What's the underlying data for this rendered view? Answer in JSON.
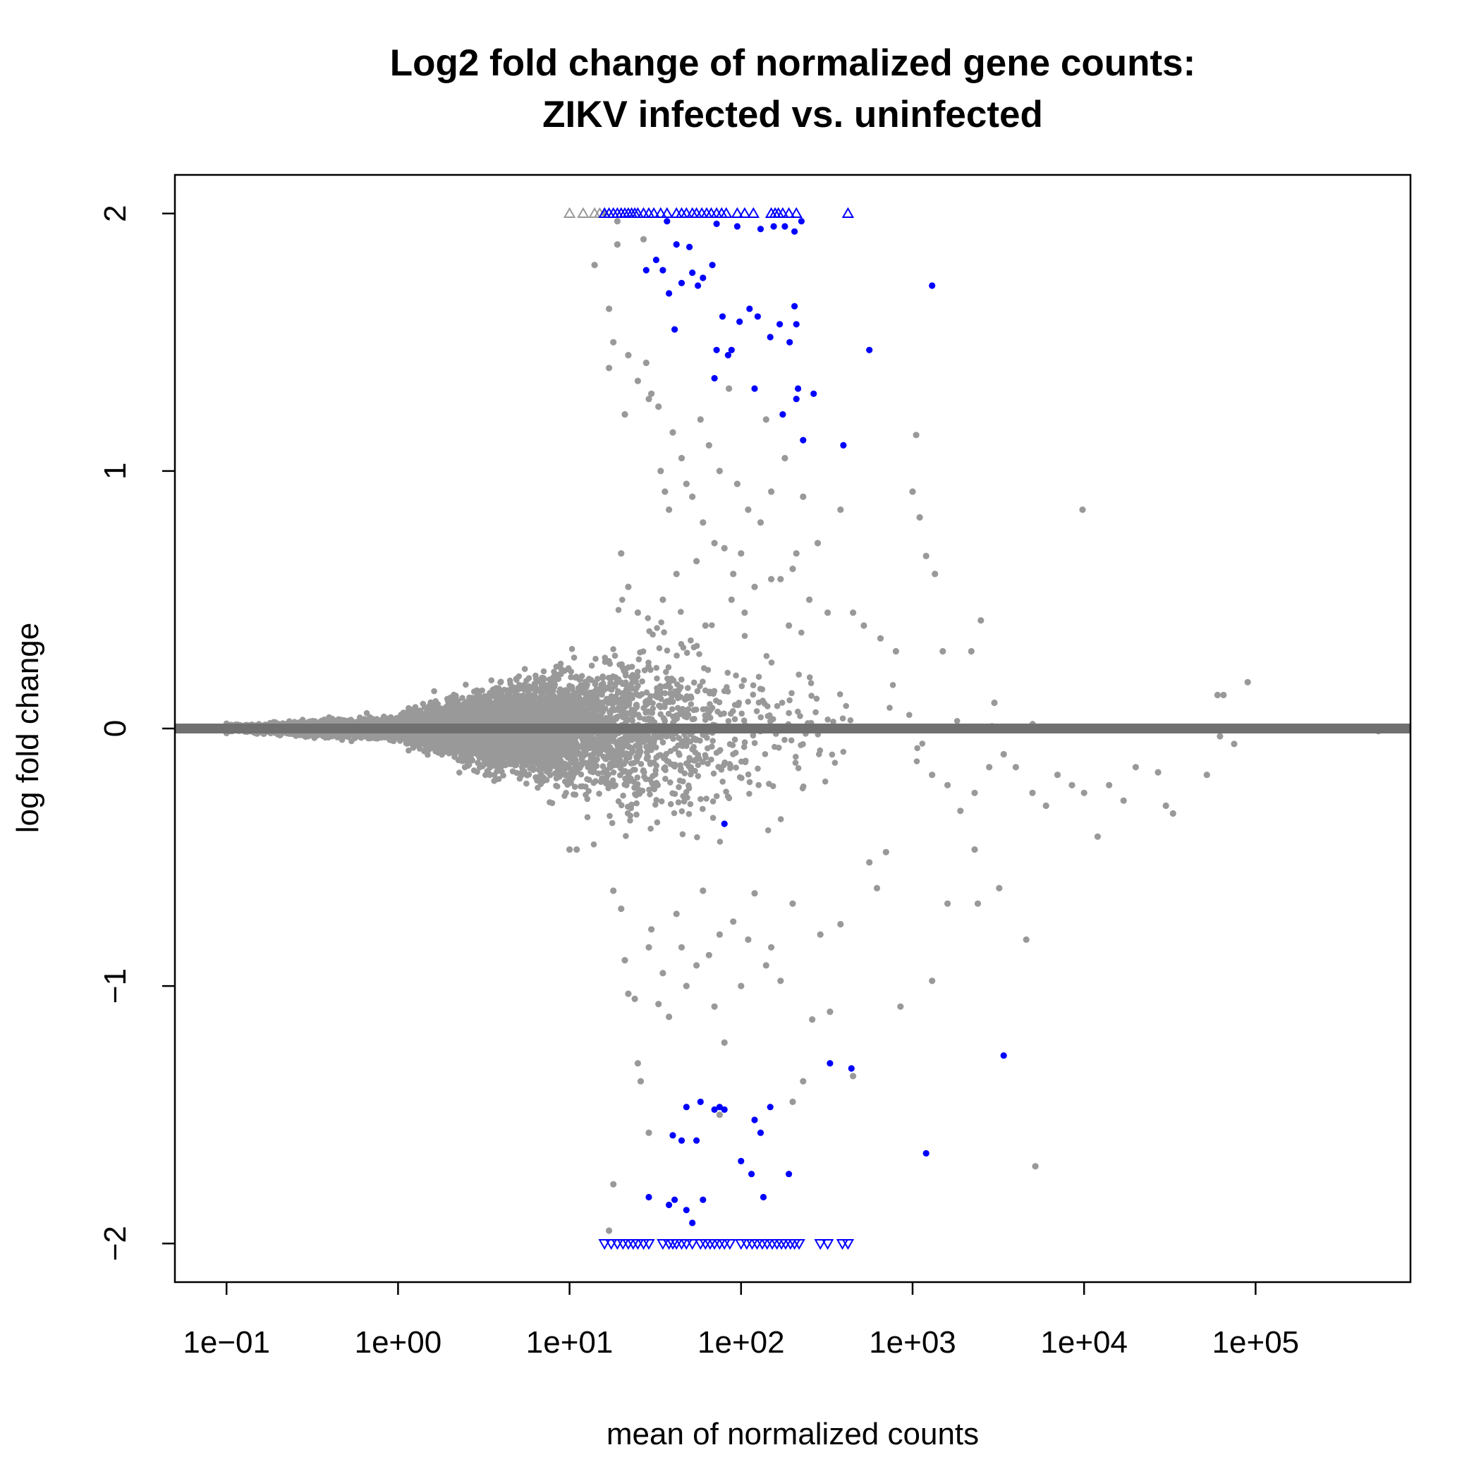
{
  "chart_data": {
    "type": "scatter",
    "title": [
      "Log2 fold change of normalized gene counts:",
      "ZIKV infected vs. uninfected"
    ],
    "xlabel": "mean of normalized counts",
    "ylabel": "log fold change",
    "x_scale": "log10",
    "xlim": [
      0.05,
      800000
    ],
    "ylim": [
      -2.15,
      2.15
    ],
    "x_ticks": [
      {
        "value": 0.1,
        "label": "1e−01"
      },
      {
        "value": 1,
        "label": "1e+00"
      },
      {
        "value": 10,
        "label": "1e+01"
      },
      {
        "value": 100,
        "label": "1e+02"
      },
      {
        "value": 1000,
        "label": "1e+03"
      },
      {
        "value": 10000,
        "label": "1e+04"
      },
      {
        "value": 100000,
        "label": "1e+05"
      }
    ],
    "y_ticks": [
      {
        "value": 2,
        "label": "2"
      },
      {
        "value": 1,
        "label": "1"
      },
      {
        "value": 0,
        "label": "0"
      },
      {
        "value": -1,
        "label": "−1"
      },
      {
        "value": -2,
        "label": "−2"
      }
    ],
    "reference_line": {
      "y": 0,
      "color": "#707070"
    },
    "colors": {
      "not_significant": "#999999",
      "significant": "#0000ff",
      "frame": "#000000"
    },
    "series": [
      {
        "points": [
          [
            14,
            1.8
          ],
          [
            17,
            1.63
          ],
          [
            17,
            1.4
          ],
          [
            19,
            1.88
          ],
          [
            21,
            1.22
          ],
          [
            25,
            1.35
          ],
          [
            28,
            1.42
          ],
          [
            30,
            1.3
          ],
          [
            33,
            1.25
          ],
          [
            34,
            1.0
          ],
          [
            36,
            0.92
          ],
          [
            38,
            0.85
          ],
          [
            40,
            1.15
          ],
          [
            45,
            1.05
          ],
          [
            48,
            0.95
          ],
          [
            52,
            0.9
          ],
          [
            58,
            1.2
          ],
          [
            60,
            0.8
          ],
          [
            65,
            1.1
          ],
          [
            70,
            0.72
          ],
          [
            75,
            1.0
          ],
          [
            80,
            0.7
          ],
          [
            85,
            1.32
          ],
          [
            90,
            0.6
          ],
          [
            95,
            0.95
          ],
          [
            100,
            0.68
          ],
          [
            110,
            0.85
          ],
          [
            120,
            0.55
          ],
          [
            130,
            0.8
          ],
          [
            140,
            1.2
          ],
          [
            150,
            0.92
          ],
          [
            170,
            0.58
          ],
          [
            180,
            1.05
          ],
          [
            200,
            0.62
          ],
          [
            230,
            0.9
          ],
          [
            250,
            0.5
          ],
          [
            280,
            0.72
          ],
          [
            320,
            0.45
          ],
          [
            380,
            0.85
          ],
          [
            450,
            0.45
          ],
          [
            520,
            0.4
          ],
          [
            650,
            0.35
          ],
          [
            800,
            0.3
          ],
          [
            1000,
            0.92
          ],
          [
            1050,
            1.14
          ],
          [
            1100,
            0.82
          ],
          [
            1200,
            0.67
          ],
          [
            1350,
            0.6
          ],
          [
            1500,
            0.3
          ],
          [
            2200,
            0.3
          ],
          [
            2500,
            0.42
          ],
          [
            3000,
            0.1
          ],
          [
            9800,
            0.85
          ],
          [
            60000,
            0.13
          ],
          [
            65000,
            0.13
          ],
          [
            90000,
            0.18
          ],
          [
            20,
            0.68
          ],
          [
            22,
            0.55
          ],
          [
            25,
            0.45
          ],
          [
            35,
            0.5
          ],
          [
            42,
            0.6
          ],
          [
            55,
            0.65
          ],
          [
            62,
            0.4
          ],
          [
            88,
            0.5
          ],
          [
            105,
            0.45
          ],
          [
            150,
            0.58
          ],
          [
            190,
            0.4
          ],
          [
            210,
            0.68
          ],
          [
            18,
            1.5
          ],
          [
            22,
            1.45
          ],
          [
            29,
            1.28
          ],
          [
            16,
            2.0
          ],
          [
            19,
            1.97
          ],
          [
            27,
            1.9
          ],
          [
            10,
            -0.47
          ],
          [
            11,
            -0.47
          ],
          [
            18,
            -0.63
          ],
          [
            20,
            -0.7
          ],
          [
            21,
            -0.9
          ],
          [
            22,
            -1.03
          ],
          [
            24,
            -1.05
          ],
          [
            25,
            -1.3
          ],
          [
            26,
            -1.37
          ],
          [
            29,
            -0.85
          ],
          [
            30,
            -0.78
          ],
          [
            33,
            -1.07
          ],
          [
            35,
            -0.95
          ],
          [
            38,
            -1.12
          ],
          [
            42,
            -0.72
          ],
          [
            45,
            -0.85
          ],
          [
            48,
            -1.0
          ],
          [
            55,
            -0.92
          ],
          [
            60,
            -0.63
          ],
          [
            65,
            -0.88
          ],
          [
            70,
            -1.08
          ],
          [
            75,
            -0.8
          ],
          [
            80,
            -1.22
          ],
          [
            90,
            -0.75
          ],
          [
            100,
            -1.0
          ],
          [
            110,
            -0.82
          ],
          [
            120,
            -0.64
          ],
          [
            140,
            -0.92
          ],
          [
            150,
            -0.85
          ],
          [
            170,
            -0.98
          ],
          [
            200,
            -0.68
          ],
          [
            230,
            -1.37
          ],
          [
            260,
            -1.13
          ],
          [
            290,
            -0.8
          ],
          [
            330,
            -1.1
          ],
          [
            380,
            -0.76
          ],
          [
            450,
            -1.35
          ],
          [
            560,
            -0.52
          ],
          [
            620,
            -0.62
          ],
          [
            700,
            -0.48
          ],
          [
            850,
            -1.08
          ],
          [
            1300,
            -0.98
          ],
          [
            1600,
            -0.68
          ],
          [
            2300,
            -0.47
          ],
          [
            2400,
            -0.68
          ],
          [
            3200,
            -0.62
          ],
          [
            4600,
            -0.82
          ],
          [
            5200,
            -1.7
          ],
          [
            4000,
            -0.15
          ],
          [
            5000,
            -0.25
          ],
          [
            6000,
            -0.3
          ],
          [
            7000,
            -0.18
          ],
          [
            8500,
            -0.22
          ],
          [
            10000,
            -0.25
          ],
          [
            12000,
            -0.42
          ],
          [
            14000,
            -0.22
          ],
          [
            17000,
            -0.28
          ],
          [
            20000,
            -0.15
          ],
          [
            27000,
            -0.17
          ],
          [
            30000,
            -0.3
          ],
          [
            33000,
            -0.33
          ],
          [
            52000,
            -0.18
          ],
          [
            62000,
            -0.03
          ],
          [
            75000,
            -0.06
          ],
          [
            520000,
            -0.01
          ],
          [
            1300,
            -0.18
          ],
          [
            1600,
            -0.22
          ],
          [
            1900,
            -0.32
          ],
          [
            2300,
            -0.25
          ],
          [
            2800,
            -0.15
          ],
          [
            3400,
            -0.1
          ],
          [
            17,
            -1.95
          ],
          [
            18,
            -1.77
          ],
          [
            200,
            -1.45
          ],
          [
            29,
            -1.57
          ],
          [
            75,
            -1.5
          ]
        ]
      },
      {
        "points": [
          [
            37,
            1.97
          ],
          [
            72,
            1.96
          ],
          [
            95,
            1.95
          ],
          [
            130,
            1.94
          ],
          [
            155,
            1.95
          ],
          [
            180,
            1.95
          ],
          [
            205,
            1.93
          ],
          [
            225,
            1.97
          ],
          [
            42,
            1.88
          ],
          [
            28,
            1.78
          ],
          [
            32,
            1.82
          ],
          [
            35,
            1.78
          ],
          [
            38,
            1.69
          ],
          [
            45,
            1.73
          ],
          [
            50,
            1.87
          ],
          [
            52,
            1.77
          ],
          [
            56,
            1.72
          ],
          [
            60,
            1.75
          ],
          [
            68,
            1.8
          ],
          [
            1300,
            1.72
          ],
          [
            41,
            1.55
          ],
          [
            72,
            1.47
          ],
          [
            78,
            1.6
          ],
          [
            84,
            1.45
          ],
          [
            98,
            1.58
          ],
          [
            112,
            1.63
          ],
          [
            125,
            1.6
          ],
          [
            148,
            1.52
          ],
          [
            168,
            1.57
          ],
          [
            192,
            1.5
          ],
          [
            205,
            1.64
          ],
          [
            210,
            1.57
          ],
          [
            88,
            1.47
          ],
          [
            70,
            1.36
          ],
          [
            120,
            1.32
          ],
          [
            175,
            1.22
          ],
          [
            210,
            1.28
          ],
          [
            215,
            1.32
          ],
          [
            230,
            1.12
          ],
          [
            265,
            1.3
          ],
          [
            395,
            1.1
          ],
          [
            560,
            1.47
          ],
          [
            80,
            -0.37
          ],
          [
            58,
            -1.45
          ],
          [
            70,
            -1.48
          ],
          [
            80,
            -1.48
          ],
          [
            75,
            -1.47
          ],
          [
            48,
            -1.47
          ],
          [
            45,
            -1.6
          ],
          [
            40,
            -1.58
          ],
          [
            55,
            -1.6
          ],
          [
            120,
            -1.52
          ],
          [
            130,
            -1.57
          ],
          [
            148,
            -1.47
          ],
          [
            100,
            -1.68
          ],
          [
            115,
            -1.73
          ],
          [
            135,
            -1.82
          ],
          [
            190,
            -1.73
          ],
          [
            29,
            -1.82
          ],
          [
            38,
            -1.85
          ],
          [
            41,
            -1.83
          ],
          [
            52,
            -1.92
          ],
          [
            60,
            -1.83
          ],
          [
            48,
            -1.87
          ],
          [
            1200,
            -1.65
          ],
          [
            330,
            -1.3
          ],
          [
            440,
            -1.32
          ],
          [
            3400,
            -1.27
          ]
        ]
      },
      {
        "points": [
          [
            10,
            2.0
          ],
          [
            12,
            2.0
          ],
          [
            14,
            2.0
          ],
          [
            15,
            2.0
          ],
          [
            16,
            2.0
          ]
        ]
      },
      {
        "points": [
          [
            16,
            2.0
          ],
          [
            17,
            2.0
          ],
          [
            18,
            2.0
          ],
          [
            19,
            2.0
          ],
          [
            20,
            2.0
          ],
          [
            21,
            2.0
          ],
          [
            22,
            2.0
          ],
          [
            23,
            2.0
          ],
          [
            24,
            2.0
          ],
          [
            25,
            2.0
          ],
          [
            27,
            2.0
          ],
          [
            29,
            2.0
          ],
          [
            31,
            2.0
          ],
          [
            34,
            2.0
          ],
          [
            37,
            2.0
          ],
          [
            42,
            2.0
          ],
          [
            45,
            2.0
          ],
          [
            48,
            2.0
          ],
          [
            52,
            2.0
          ],
          [
            55,
            2.0
          ],
          [
            59,
            2.0
          ],
          [
            63,
            2.0
          ],
          [
            67,
            2.0
          ],
          [
            72,
            2.0
          ],
          [
            77,
            2.0
          ],
          [
            82,
            2.0
          ],
          [
            95,
            2.0
          ],
          [
            105,
            2.0
          ],
          [
            118,
            2.0
          ],
          [
            150,
            2.0
          ],
          [
            158,
            2.0
          ],
          [
            165,
            2.0
          ],
          [
            175,
            2.0
          ],
          [
            190,
            2.0
          ],
          [
            210,
            2.0
          ],
          [
            420,
            2.0
          ]
        ]
      },
      {
        "points": [
          [
            16,
            -2.0
          ],
          [
            17.5,
            -2.0
          ],
          [
            19,
            -2.0
          ],
          [
            20.5,
            -2.0
          ],
          [
            22,
            -2.0
          ],
          [
            23.5,
            -2.0
          ],
          [
            25,
            -2.0
          ],
          [
            27,
            -2.0
          ],
          [
            29,
            -2.0
          ],
          [
            35,
            -2.0
          ],
          [
            38,
            -2.0
          ],
          [
            40,
            -2.0
          ],
          [
            42,
            -2.0
          ],
          [
            45,
            -2.0
          ],
          [
            48,
            -2.0
          ],
          [
            52,
            -2.0
          ],
          [
            58,
            -2.0
          ],
          [
            62,
            -2.0
          ],
          [
            66,
            -2.0
          ],
          [
            70,
            -2.0
          ],
          [
            75,
            -2.0
          ],
          [
            80,
            -2.0
          ],
          [
            86,
            -2.0
          ],
          [
            100,
            -2.0
          ],
          [
            108,
            -2.0
          ],
          [
            116,
            -2.0
          ],
          [
            124,
            -2.0
          ],
          [
            133,
            -2.0
          ],
          [
            142,
            -2.0
          ],
          [
            152,
            -2.0
          ],
          [
            162,
            -2.0
          ],
          [
            172,
            -2.0
          ],
          [
            182,
            -2.0
          ],
          [
            194,
            -2.0
          ],
          [
            205,
            -2.0
          ],
          [
            218,
            -2.0
          ],
          [
            290,
            -2.0
          ],
          [
            320,
            -2.0
          ],
          [
            390,
            -2.0
          ],
          [
            420,
            -2.0
          ]
        ]
      }
    ]
  }
}
